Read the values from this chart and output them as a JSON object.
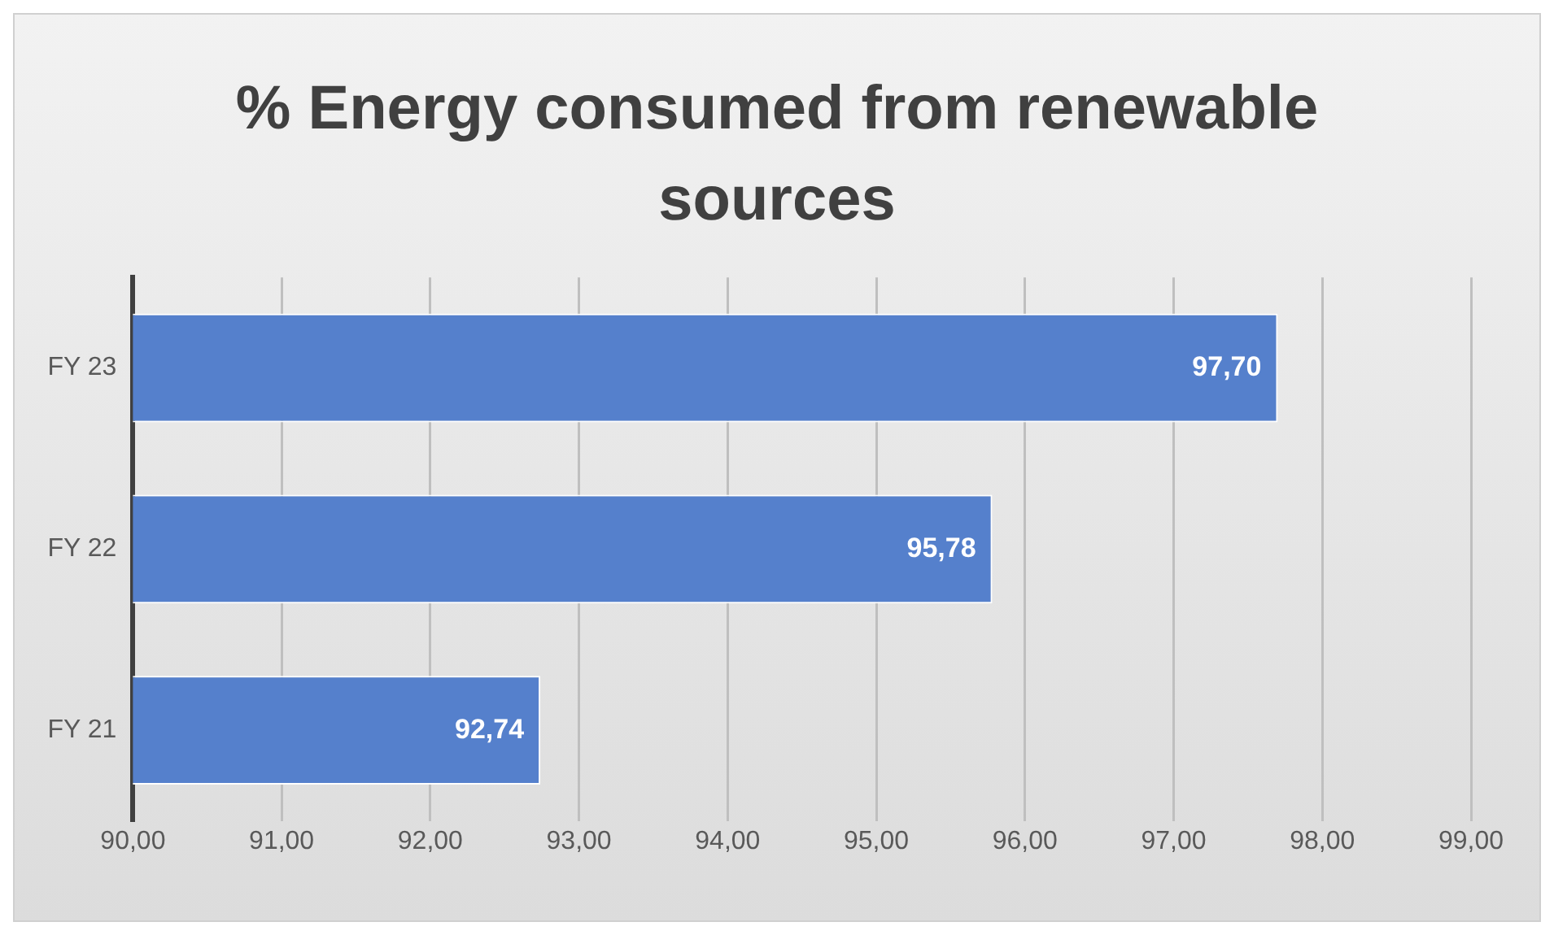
{
  "chart_data": {
    "type": "bar",
    "orientation": "horizontal",
    "title": "% Energy consumed from renewable sources",
    "categories": [
      "FY 23",
      "FY 22",
      "FY 21"
    ],
    "values": [
      97.7,
      95.78,
      92.74
    ],
    "value_labels": [
      "97,70",
      "95,78",
      "92,74"
    ],
    "color": "#5580cc",
    "xlim": [
      90,
      99
    ],
    "xticks": [
      {
        "value": 90,
        "label": "90,00"
      },
      {
        "value": 91,
        "label": "91,00"
      },
      {
        "value": 92,
        "label": "92,00"
      },
      {
        "value": 93,
        "label": "93,00"
      },
      {
        "value": 94,
        "label": "94,00"
      },
      {
        "value": 95,
        "label": "95,00"
      },
      {
        "value": 96,
        "label": "96,00"
      },
      {
        "value": 97,
        "label": "97,00"
      },
      {
        "value": 98,
        "label": "98,00"
      },
      {
        "value": 99,
        "label": "99,00"
      }
    ],
    "grid": "x"
  }
}
